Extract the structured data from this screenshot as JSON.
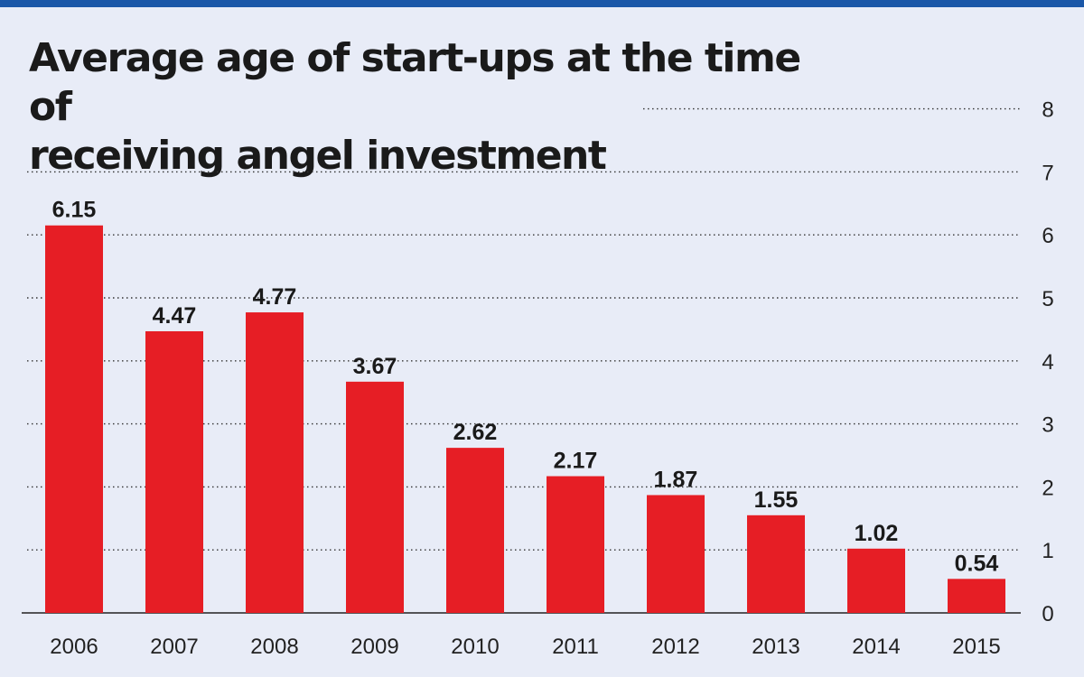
{
  "chart_data": {
    "type": "bar",
    "title": "Average age of start-ups at the time of receiving angel investment",
    "title_lines": [
      "Average age of start-ups at the time of",
      "receiving angel investment"
    ],
    "categories": [
      "2006",
      "2007",
      "2008",
      "2009",
      "2010",
      "2011",
      "2012",
      "2013",
      "2014",
      "2015"
    ],
    "values": [
      6.15,
      4.47,
      4.77,
      3.67,
      2.62,
      2.17,
      1.87,
      1.55,
      1.02,
      0.54
    ],
    "value_labels": [
      "6.15",
      "4.47",
      "4.77",
      "3.67",
      "2.62",
      "2.17",
      "1.87",
      "1.55",
      "1.02",
      "0.54"
    ],
    "yticks": [
      "0",
      "1",
      "2",
      "3",
      "4",
      "5",
      "6",
      "7",
      "8"
    ],
    "ylim": [
      0,
      8
    ],
    "y_axis_side": "right",
    "grid": true,
    "xlabel": "",
    "ylabel": "",
    "colors": {
      "bar": "#e61e25",
      "background": "#e8ecf7",
      "top_rule": "#1a57a8"
    }
  }
}
